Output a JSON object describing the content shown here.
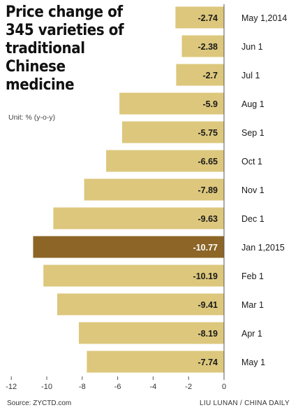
{
  "chart_data": {
    "type": "bar",
    "orientation": "horizontal",
    "title": "Price change of 345 varieties of traditional Chinese medicine",
    "unit_label": "Unit: % (y-o-y)",
    "categories": [
      "May 1,2014",
      "Jun 1",
      "Jul 1",
      "Aug 1",
      "Sep 1",
      "Oct 1",
      "Nov 1",
      "Dec 1",
      "Jan 1,2015",
      "Feb 1",
      "Mar 1",
      "Apr 1",
      "May 1"
    ],
    "values": [
      -2.74,
      -2.38,
      -2.7,
      -5.9,
      -5.75,
      -6.65,
      -7.89,
      -9.63,
      -10.77,
      -10.19,
      -9.41,
      -8.19,
      -7.74
    ],
    "value_labels": [
      "-2.74",
      "-2.38",
      "-2.7",
      "-5.9",
      "-5.75",
      "-6.65",
      "-7.89",
      "-9.63",
      "-10.77",
      "-10.19",
      "-9.41",
      "-8.19",
      "-7.74"
    ],
    "highlight_index": 8,
    "xlim": [
      -12,
      0
    ],
    "x_ticks": [
      -12,
      -10,
      -8,
      -6,
      -4,
      -2,
      0
    ],
    "grid": false,
    "legend": "none",
    "colors": {
      "bar": "#dcc77c",
      "highlight": "#8c6527",
      "label": "#1a1a1a",
      "highlight_label": "#ffffff"
    }
  },
  "footer": {
    "source": "Source: ZYCTD.com",
    "credit": "LIU LUNAN / CHINA DAILY"
  }
}
